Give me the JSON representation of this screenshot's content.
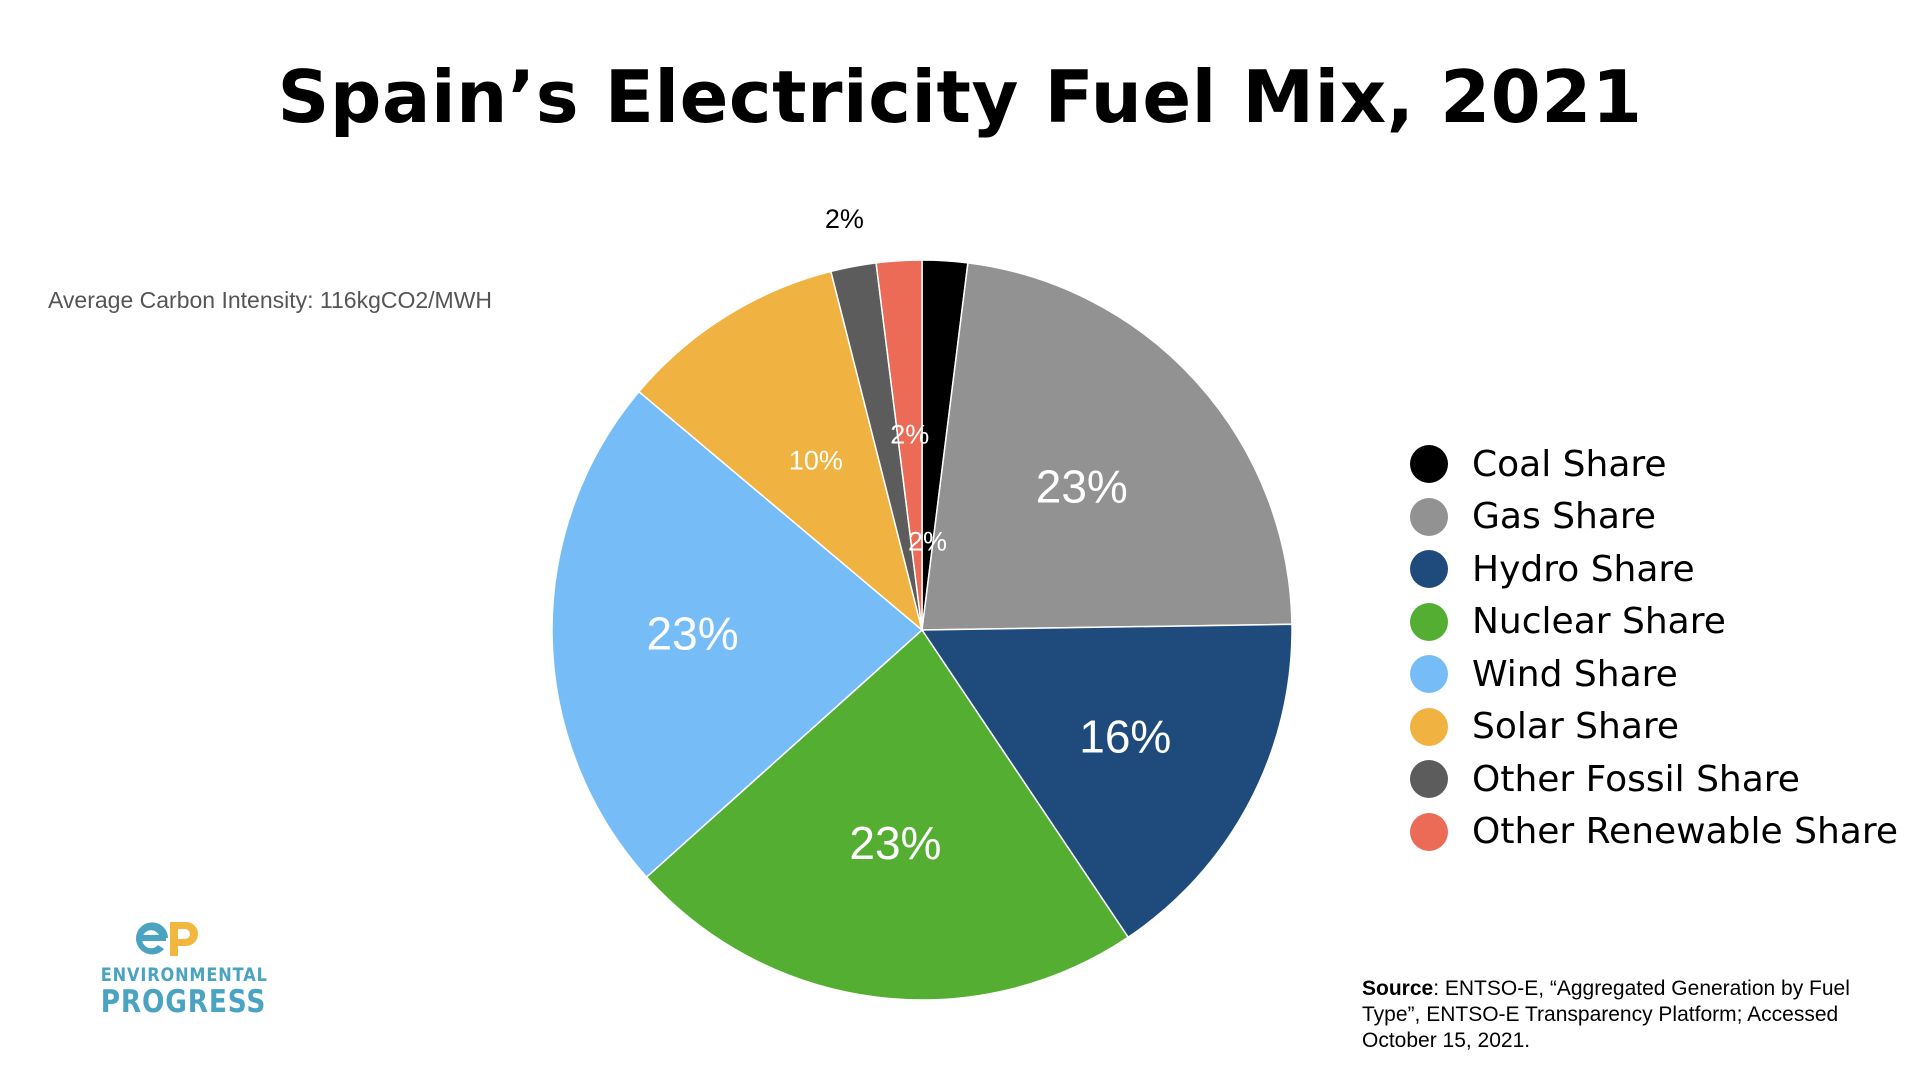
{
  "chart_data": {
    "type": "pie",
    "title": "Spain’s Electricity Fuel Mix, 2021",
    "subtitle": "Average Carbon Intensity: 116kgCO2/MWH",
    "legend_position": "right",
    "start_angle_deg": 0,
    "direction": "clockwise",
    "slices": [
      {
        "name": "Coal Share",
        "value": 2,
        "label": "2%",
        "color": "#000000",
        "label_color": "#ffffff"
      },
      {
        "name": "Gas Share",
        "value": 23,
        "label": "23%",
        "color": "#929292",
        "label_color": "#ffffff"
      },
      {
        "name": "Hydro Share",
        "value": 16,
        "label": "16%",
        "color": "#1f4b7c",
        "label_color": "#ffffff"
      },
      {
        "name": "Nuclear Share",
        "value": 23,
        "label": "23%",
        "color": "#54ae32",
        "label_color": "#ffffff"
      },
      {
        "name": "Wind Share",
        "value": 23,
        "label": "23%",
        "color": "#76bdf7",
        "label_color": "#ffffff"
      },
      {
        "name": "Solar Share",
        "value": 10,
        "label": "10%",
        "color": "#f0b240",
        "label_color": "#ffffff"
      },
      {
        "name": "Other Fossil Share",
        "value": 2,
        "label": "2%",
        "color": "#5c5c5c",
        "label_color": "#000000"
      },
      {
        "name": "Other Renewable Share",
        "value": 2,
        "label": "2%",
        "color": "#ec6b56",
        "label_color": "#ffffff"
      }
    ]
  },
  "logo": {
    "line1": "ENVIRONMENTAL",
    "line2": "PROGRESS",
    "colors": {
      "e": "#4aa3c0",
      "p": "#f2b73f"
    }
  },
  "source": {
    "label": "Source",
    "text": ": ENTSO-E, “Aggregated Generation by Fuel Type”, ENTSO-E Transparency Platform; Accessed October 15, 2021."
  }
}
